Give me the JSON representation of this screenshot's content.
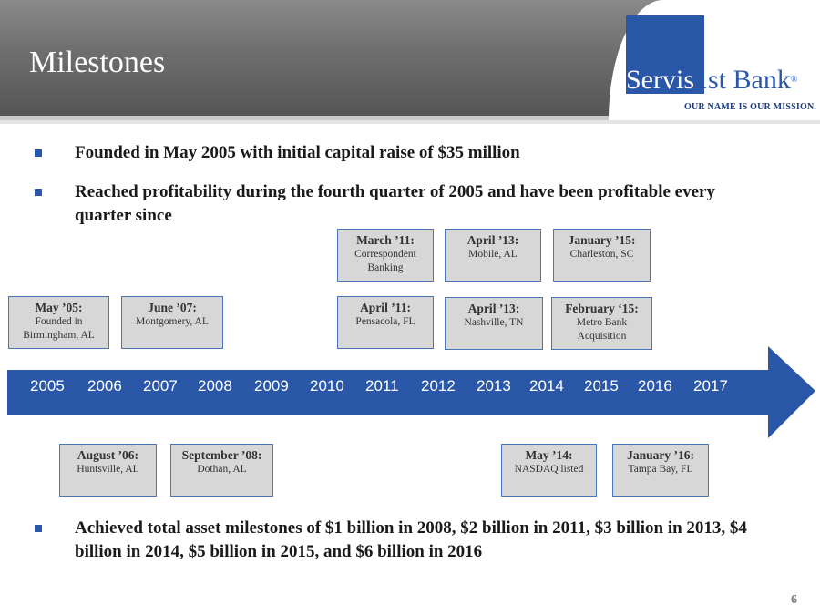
{
  "header": {
    "title": "Milestones",
    "logo_part1": "Servis",
    "logo_part2": "1st Bank",
    "logo_reg": "®",
    "tagline": "OUR NAME IS OUR MISSION."
  },
  "bullets_top": [
    "Founded in May 2005 with initial capital raise of $35 million",
    "Reached profitability during the fourth quarter of 2005 and have been profitable every quarter since"
  ],
  "bullet_bottom": "Achieved total asset milestones of $1 billion in 2008, $2 billion in 2011, $3 billion in 2013, $4 billion in 2014, $5 billion in 2015, and $6 billion in 2016",
  "timeline": {
    "years": [
      "2005",
      "2006",
      "2007",
      "2008",
      "2009",
      "2010",
      "2011",
      "2012",
      "2013",
      "2014",
      "2015",
      "2016",
      "2017"
    ]
  },
  "milestones": {
    "m_mar11": {
      "date": "March ’11:",
      "desc": "Correspondent Banking"
    },
    "m_apr13a": {
      "date": "April ’13:",
      "desc": "Mobile, AL"
    },
    "m_jan15": {
      "date": "January ’15:",
      "desc": "Charleston, SC"
    },
    "m_may05": {
      "date": "May ’05:",
      "desc": "Founded in Birmingham, AL"
    },
    "m_jun07": {
      "date": "June ’07:",
      "desc": "Montgomery, AL"
    },
    "m_apr11": {
      "date": "April ’11:",
      "desc": "Pensacola, FL"
    },
    "m_apr13b": {
      "date": "April ’13:",
      "desc": "Nashville, TN"
    },
    "m_feb15": {
      "date": "February ‘15:",
      "desc": "Metro Bank Acquisition"
    },
    "m_aug06": {
      "date": "August ’06:",
      "desc": "Huntsville, AL"
    },
    "m_sep08": {
      "date": "September ’08:",
      "desc": "Dothan, AL"
    },
    "m_may14": {
      "date": "May ’14:",
      "desc": "NASDAQ listed"
    },
    "m_jan16": {
      "date": "January ’16:",
      "desc": "Tampa Bay, FL"
    }
  },
  "page_number": "6",
  "colors": {
    "accent_blue": "#2b57a8",
    "box_fill": "#d7d7d7",
    "box_border": "#4a76b8"
  }
}
